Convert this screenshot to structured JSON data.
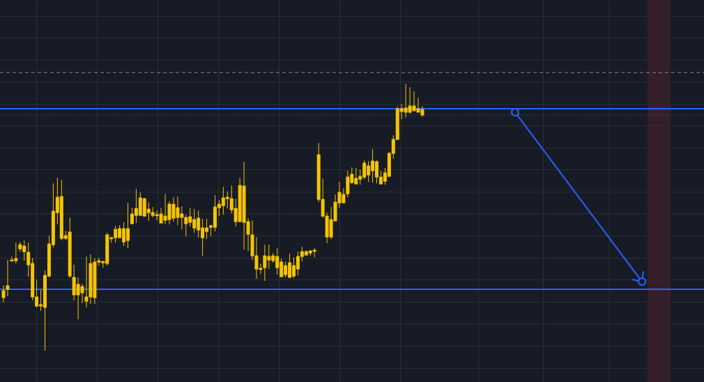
{
  "colors": {
    "background": "#171b26",
    "grid": "#2a2e39",
    "candle": "#f5c400",
    "line": "#2962ff",
    "band": "#3a1f2a",
    "dashed": "#8a8d95"
  },
  "chart_data": {
    "type": "candlestick",
    "title": "",
    "xlabel": "",
    "ylabel": "",
    "ylim": [
      0,
      548
    ],
    "grid": true,
    "candles": [
      [
        417,
        427,
        409,
        434
      ],
      [
        410,
        415,
        373,
        425
      ],
      [
        373,
        374,
        368,
        374
      ],
      [
        371,
        374,
        348,
        378
      ],
      [
        351,
        357,
        347,
        361
      ],
      [
        353,
        361,
        345,
        374
      ],
      [
        362,
        380,
        348,
        397
      ],
      [
        378,
        426,
        370,
        431
      ],
      [
        426,
        439,
        401,
        441
      ],
      [
        437,
        439,
        416,
        446
      ],
      [
        395,
        441,
        388,
        503
      ],
      [
        350,
        396,
        338,
        398
      ],
      [
        303,
        351,
        263,
        355
      ],
      [
        283,
        305,
        255,
        322
      ],
      [
        282,
        342,
        258,
        345
      ],
      [
        338,
        342,
        331,
        344
      ],
      [
        333,
        396,
        312,
        398
      ],
      [
        398,
        423,
        380,
        431
      ],
      [
        408,
        423,
        398,
        458
      ],
      [
        411,
        420,
        407,
        435
      ],
      [
        426,
        432,
        368,
        441
      ],
      [
        378,
        426,
        365,
        436
      ],
      [
        376,
        427,
        370,
        436
      ],
      [
        374,
        376,
        370,
        381
      ],
      [
        375,
        377,
        375,
        384
      ],
      [
        337,
        378,
        334,
        381
      ],
      [
        341,
        341,
        340,
        348
      ],
      [
        329,
        341,
        324,
        348
      ],
      [
        328,
        341,
        323,
        341
      ],
      [
        328,
        347,
        319,
        353
      ],
      [
        328,
        345,
        291,
        356
      ],
      [
        307,
        321,
        298,
        320
      ],
      [
        299,
        309,
        271,
        320
      ],
      [
        284,
        309,
        276,
        309
      ],
      [
        285,
        310,
        284,
        311
      ],
      [
        300,
        305,
        290,
        317
      ],
      [
        305,
        309,
        297,
        312
      ],
      [
        308,
        309,
        302,
        316
      ],
      [
        307,
        320,
        298,
        319
      ],
      [
        310,
        316,
        278,
        322
      ],
      [
        293,
        315,
        289,
        322
      ],
      [
        293,
        313,
        283,
        318
      ],
      [
        298,
        312,
        282,
        323
      ],
      [
        307,
        312,
        296,
        329
      ],
      [
        312,
        321,
        308,
        339
      ],
      [
        311,
        319,
        298,
        325
      ],
      [
        315,
        327,
        300,
        334
      ],
      [
        313,
        330,
        302,
        341
      ],
      [
        327,
        341,
        314,
        367
      ],
      [
        327,
        332,
        314,
        343
      ],
      [
        324,
        326,
        322,
        339
      ],
      [
        297,
        326,
        280,
        332
      ],
      [
        293,
        298,
        287,
        310
      ],
      [
        284,
        295,
        268,
        308
      ],
      [
        283,
        285,
        275,
        299
      ],
      [
        285,
        301,
        266,
        306
      ],
      [
        299,
        318,
        285,
        325
      ],
      [
        266,
        318,
        255,
        318
      ],
      [
        267,
        319,
        232,
        358
      ],
      [
        318,
        336,
        313,
        360
      ],
      [
        337,
        367,
        316,
        373
      ],
      [
        367,
        386,
        340,
        400
      ],
      [
        385,
        386,
        378,
        393
      ],
      [
        367,
        384,
        351,
        403
      ],
      [
        368,
        373,
        351,
        386
      ],
      [
        367,
        374,
        363,
        377
      ],
      [
        368,
        384,
        356,
        394
      ],
      [
        376,
        397,
        371,
        397
      ],
      [
        381,
        394,
        375,
        398
      ],
      [
        377,
        398,
        364,
        398
      ],
      [
        381,
        396,
        369,
        399
      ],
      [
        368,
        386,
        361,
        395
      ],
      [
        361,
        368,
        354,
        375
      ],
      [
        361,
        366,
        359,
        364
      ],
      [
        360,
        363,
        359,
        367
      ],
      [
        359,
        360,
        356,
        369
      ],
      [
        222,
        286,
        205,
        290
      ],
      [
        286,
        310,
        256,
        312
      ],
      [
        310,
        340,
        305,
        349
      ],
      [
        315,
        340,
        297,
        343
      ],
      [
        290,
        317,
        279,
        317
      ],
      [
        276,
        291,
        261,
        298
      ],
      [
        279,
        291,
        270,
        291
      ],
      [
        254,
        278,
        245,
        283
      ],
      [
        250,
        262,
        240,
        264
      ],
      [
        256,
        264,
        241,
        264
      ],
      [
        253,
        257,
        243,
        265
      ],
      [
        234,
        254,
        230,
        257
      ],
      [
        238,
        251,
        231,
        261
      ],
      [
        231,
        245,
        214,
        262
      ],
      [
        232,
        254,
        230,
        263
      ],
      [
        254,
        264,
        245,
        263
      ],
      [
        248,
        260,
        241,
        265
      ],
      [
        220,
        253,
        218,
        254
      ],
      [
        200,
        220,
        194,
        228
      ],
      [
        156,
        200,
        153,
        201
      ],
      [
        156,
        160,
        149,
        171
      ],
      [
        155,
        161,
        120,
        169
      ],
      [
        152,
        161,
        125,
        163
      ],
      [
        152,
        159,
        131,
        157
      ],
      [
        156,
        161,
        140,
        161
      ],
      [
        157,
        165,
        152,
        168
      ]
    ],
    "horizontal_lines": [
      {
        "y": 156,
        "style": "solid"
      },
      {
        "y": 415,
        "style": "solid"
      },
      {
        "y": 104,
        "style": "dashed"
      },
      {
        "y": 165,
        "style": "dotted"
      }
    ],
    "trend_line": {
      "from": [
        739,
        161
      ],
      "to": [
        921,
        404
      ]
    },
    "highlight_band": {
      "from": 929,
      "to": 962
    }
  }
}
